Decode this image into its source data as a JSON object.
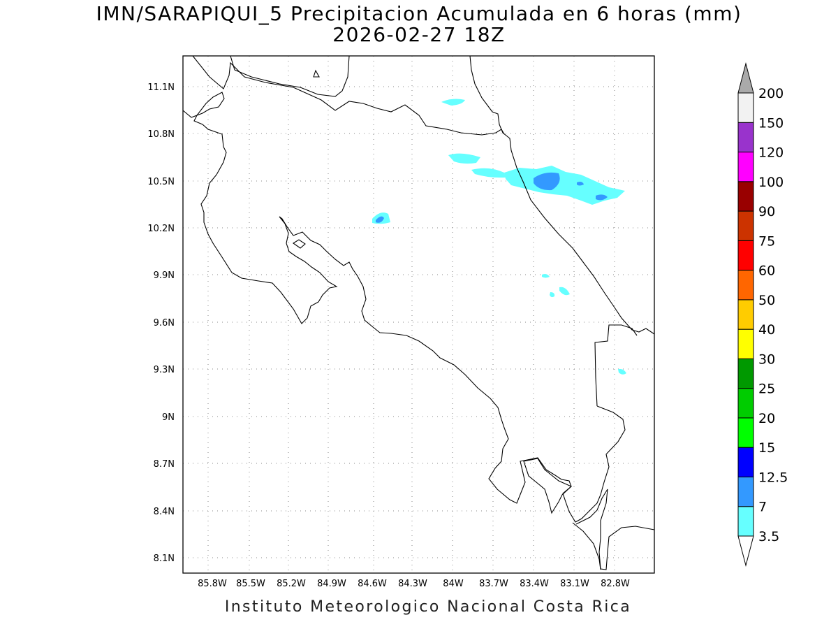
{
  "title": "IMN/SARAPIQUI_5 Precipitacion Acumulada en 6 horas (mm)",
  "subtitle": "2026-02-27 18Z",
  "footer": "Instituto Meteorologico Nacional Costa Rica",
  "map": {
    "lon_range": [
      -86.0,
      -82.45
    ],
    "lat_range": [
      8.01,
      11.35
    ],
    "grid": true,
    "lon_ticks": [
      "85.8W",
      "85.5W",
      "85.2W",
      "84.9W",
      "84.6W",
      "84.3W",
      "84W",
      "83.7W",
      "83.4W",
      "83.1W",
      "82.8W"
    ],
    "lat_ticks": [
      "8.1N",
      "8.4N",
      "8.7N",
      "9N",
      "9.3N",
      "9.6N",
      "9.9N",
      "10.2N",
      "10.5N",
      "10.8N",
      "11.1N"
    ]
  },
  "colorbar": {
    "labels": [
      "3.5",
      "7",
      "12.5",
      "15",
      "20",
      "25",
      "30",
      "40",
      "50",
      "60",
      "75",
      "90",
      "100",
      "120",
      "150",
      "200"
    ],
    "colors": [
      "#66ffff",
      "#3399ff",
      "#0000ff",
      "#00ff00",
      "#00cc00",
      "#009900",
      "#ffff00",
      "#ffcc00",
      "#ff6600",
      "#ff0000",
      "#cc3300",
      "#990000",
      "#ff00ff",
      "#9933cc",
      "#f2f2f2",
      "#aaaaaa"
    ]
  }
}
